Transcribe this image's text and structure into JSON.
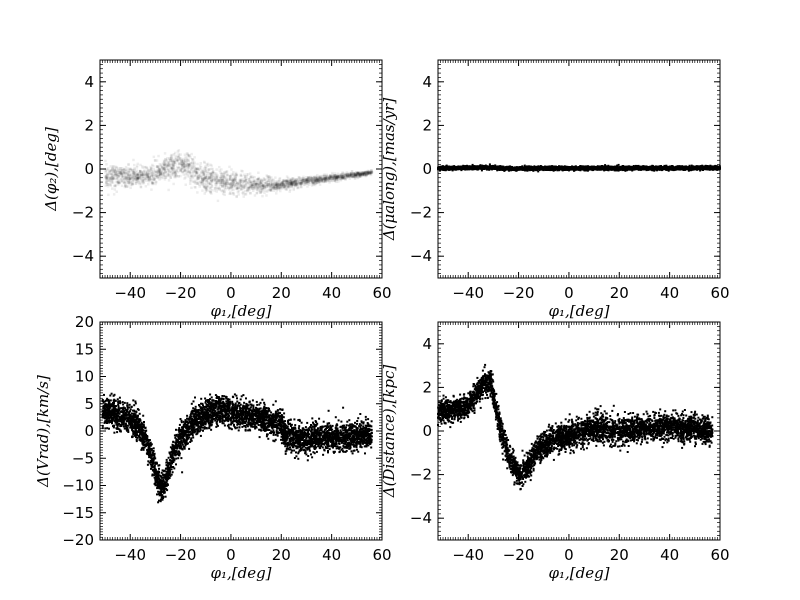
{
  "chart_data": [
    {
      "id": "phi2",
      "type": "scatter",
      "xlabel": "φ₁,[deg]",
      "ylabel": "Δ(φ₂),[deg]",
      "xlim": [
        -52,
        60
      ],
      "ylim": [
        -5,
        5
      ],
      "xticks": [
        -40,
        -20,
        0,
        20,
        40,
        60
      ],
      "yticks": [
        -4,
        -2,
        0,
        2,
        4
      ],
      "xticklabels": [
        "−40",
        "−20",
        "0",
        "20",
        "40",
        "60"
      ],
      "yticklabels": [
        "−4",
        "−2",
        "0",
        "2",
        "4"
      ],
      "style": "density",
      "point_color": "#000000",
      "x_range": [
        -50,
        56
      ],
      "trend": [
        [
          -50,
          -0.3
        ],
        [
          -40,
          -0.35
        ],
        [
          -32,
          -0.3
        ],
        [
          -28,
          -0.05
        ],
        [
          -22,
          0.1
        ],
        [
          -17,
          0.1
        ],
        [
          -12,
          -0.4
        ],
        [
          -5,
          -0.55
        ],
        [
          0,
          -0.6
        ],
        [
          10,
          -0.75
        ],
        [
          20,
          -0.7
        ],
        [
          30,
          -0.55
        ],
        [
          40,
          -0.4
        ],
        [
          50,
          -0.25
        ],
        [
          56,
          -0.15
        ]
      ],
      "spread": [
        [
          -50,
          0.25
        ],
        [
          -30,
          0.25
        ],
        [
          -17,
          0.35
        ],
        [
          -5,
          0.3
        ],
        [
          20,
          0.12
        ],
        [
          56,
          0.05
        ]
      ]
    },
    {
      "id": "mualong",
      "type": "scatter",
      "xlabel": "φ₁,[deg]",
      "ylabel": "Δ(μalong),[mas/yr]",
      "xlim": [
        -52,
        60
      ],
      "ylim": [
        -5,
        5
      ],
      "xticks": [
        -40,
        -20,
        0,
        20,
        40,
        60
      ],
      "yticks": [
        -4,
        -2,
        0,
        2,
        4
      ],
      "xticklabels": [
        "−40",
        "−20",
        "0",
        "20",
        "40",
        "60"
      ],
      "yticklabels": [
        "−4",
        "−2",
        "0",
        "2",
        "4"
      ],
      "style": "points",
      "point_color": "#000000",
      "x_range": [
        -52,
        60
      ],
      "trend": [
        [
          -52,
          0.03
        ],
        [
          -30,
          0.07
        ],
        [
          -25,
          0.02
        ],
        [
          0,
          0.03
        ],
        [
          30,
          0.04
        ],
        [
          60,
          0.05
        ]
      ],
      "spread": [
        [
          -52,
          0.04
        ],
        [
          60,
          0.04
        ]
      ]
    },
    {
      "id": "vrad",
      "type": "scatter",
      "xlabel": "φ₁,[deg]",
      "ylabel": "Δ(Vrad),[km/s]",
      "xlim": [
        -52,
        60
      ],
      "ylim": [
        -20,
        20
      ],
      "xticks": [
        -40,
        -20,
        0,
        20,
        40,
        60
      ],
      "yticks": [
        -20,
        -15,
        -10,
        -5,
        0,
        5,
        10,
        15,
        20
      ],
      "xticklabels": [
        "−40",
        "−20",
        "0",
        "20",
        "40",
        "60"
      ],
      "yticklabels": [
        "−20",
        "−15",
        "−10",
        "−5",
        "0",
        "5",
        "10",
        "15",
        "20"
      ],
      "style": "points",
      "point_color": "#000000",
      "x_range": [
        -51,
        56
      ],
      "trend": [
        [
          -51,
          3.5
        ],
        [
          -45,
          3.0
        ],
        [
          -38,
          1.5
        ],
        [
          -34,
          -1.0
        ],
        [
          -31,
          -6.0
        ],
        [
          -28,
          -10.5
        ],
        [
          -26,
          -9.0
        ],
        [
          -22,
          -3.0
        ],
        [
          -18,
          0.0
        ],
        [
          -14,
          2.0
        ],
        [
          -8,
          3.5
        ],
        [
          -4,
          4.0
        ],
        [
          0,
          3.5
        ],
        [
          10,
          2.5
        ],
        [
          20,
          1.5
        ],
        [
          22,
          -1.0
        ],
        [
          30,
          -1.5
        ],
        [
          40,
          -1.0
        ],
        [
          50,
          -1.0
        ],
        [
          56,
          -0.5
        ]
      ],
      "spread": [
        [
          -51,
          1.3
        ],
        [
          -30,
          1.4
        ],
        [
          0,
          1.3
        ],
        [
          20,
          1.3
        ],
        [
          56,
          1.2
        ]
      ]
    },
    {
      "id": "distance",
      "type": "scatter",
      "xlabel": "φ₁,[deg]",
      "ylabel": "Δ(Distance),[kpc]",
      "xlim": [
        -52,
        60
      ],
      "ylim": [
        -5,
        5
      ],
      "xticks": [
        -40,
        -20,
        0,
        20,
        40,
        60
      ],
      "yticks": [
        -4,
        -2,
        0,
        2,
        4
      ],
      "xticklabels": [
        "−40",
        "−20",
        "0",
        "20",
        "40",
        "60"
      ],
      "yticklabels": [
        "−4",
        "−2",
        "0",
        "2",
        "4"
      ],
      "style": "points",
      "point_color": "#000000",
      "x_range": [
        -52,
        57
      ],
      "trend": [
        [
          -52,
          0.9
        ],
        [
          -45,
          1.0
        ],
        [
          -40,
          1.2
        ],
        [
          -36,
          1.8
        ],
        [
          -33,
          2.3
        ],
        [
          -31,
          2.2
        ],
        [
          -28,
          0.5
        ],
        [
          -24,
          -1.2
        ],
        [
          -20,
          -2.0
        ],
        [
          -17,
          -1.8
        ],
        [
          -13,
          -1.0
        ],
        [
          -8,
          -0.5
        ],
        [
          0,
          -0.2
        ],
        [
          10,
          0.1
        ],
        [
          20,
          0.0
        ],
        [
          30,
          0.1
        ],
        [
          40,
          0.2
        ],
        [
          50,
          0.1
        ],
        [
          57,
          0.0
        ]
      ],
      "spread": [
        [
          -52,
          0.25
        ],
        [
          -30,
          0.3
        ],
        [
          0,
          0.3
        ],
        [
          20,
          0.3
        ],
        [
          57,
          0.3
        ]
      ]
    }
  ]
}
